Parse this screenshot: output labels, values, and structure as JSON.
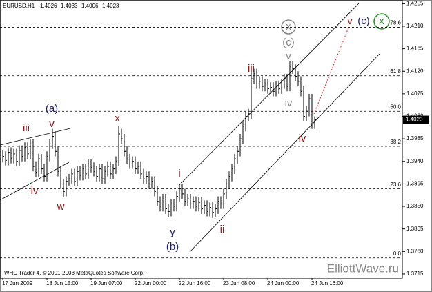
{
  "chart_data": {
    "type": "hlc",
    "symbol": "EURUSD,H1",
    "open": 1.4026,
    "high": 1.4033,
    "low": 1.4006,
    "close": 1.4023,
    "last_price": 1.4023,
    "copyright": "WHC Trader 4, © 2001-2008 MetaQuotes Software Corp.",
    "watermark": "ElliottWave.ru",
    "color": "#000000",
    "ylim": [
      1.3708,
      1.4261
    ],
    "yticks": [
      1.4255,
      {
        "value": 1.421,
        "label": "1.4210"
      },
      1.4165,
      {
        "value": 1.412,
        "label": "1.4120"
      },
      1.4075,
      {
        "value": 1.403,
        "label": "1.4030"
      },
      1.3985,
      {
        "value": 1.394,
        "label": "1.3940"
      },
      1.3895,
      {
        "value": 1.385,
        "label": "1.3850"
      },
      1.3805,
      {
        "value": 1.376,
        "label": "1.3760"
      },
      1.3715
    ],
    "fib_levels": [
      {
        "text": "78.6",
        "price": 1.4208
      },
      {
        "text": "61.8",
        "price": 1.4111
      },
      {
        "text": "50.0",
        "price": 1.404
      },
      {
        "text": "38.2",
        "price": 1.397
      },
      {
        "text": "23.6",
        "price": 1.3885
      },
      {
        "text": "0.0",
        "price": 1.3747
      }
    ],
    "categories": [
      "17 Jun 2009",
      null,
      null,
      null,
      null,
      null,
      null,
      null,
      null,
      null,
      null,
      null,
      null,
      null,
      null,
      null,
      "18 Jun 15:00",
      null,
      null,
      null,
      null,
      null,
      null,
      null,
      null,
      null,
      null,
      null,
      null,
      null,
      null,
      null,
      "19 Jun 07:00",
      null,
      null,
      null,
      null,
      null,
      null,
      null,
      null,
      null,
      null,
      null,
      null,
      null,
      null,
      null,
      "22 Jun 00:00",
      null,
      null,
      null,
      null,
      null,
      null,
      null,
      null,
      null,
      null,
      null,
      null,
      null,
      null,
      null,
      "22 Jun 16:00",
      null,
      null,
      null,
      null,
      null,
      null,
      null,
      null,
      null,
      null,
      null,
      null,
      null,
      null,
      null,
      "23 Jun 08:00",
      null,
      null,
      null,
      null,
      null,
      null,
      null,
      null,
      null,
      null,
      null,
      null,
      null,
      null,
      null,
      "24 Jun 00:00",
      null,
      null,
      null,
      null,
      null,
      null,
      null,
      null,
      null,
      null,
      null,
      null,
      null,
      null,
      null,
      "24 Jun 16:00",
      null
    ],
    "series": {
      "high": [
        1.3962,
        1.396,
        1.3968,
        1.3968,
        1.3965,
        1.3965,
        1.3972,
        1.3972,
        1.3978,
        1.3978,
        1.3985,
        1.3985,
        1.394,
        1.3955,
        1.3955,
        1.3935,
        1.396,
        1.3985,
        1.4005,
        1.4,
        1.397,
        1.393,
        1.3905,
        1.391,
        1.3915,
        1.3925,
        1.3925,
        1.393,
        1.393,
        1.3935,
        1.3935,
        1.3945,
        1.3945,
        1.3938,
        1.393,
        1.3935,
        1.3935,
        1.393,
        1.394,
        1.394,
        1.3935,
        1.395,
        1.401,
        1.4005,
        1.3995,
        1.397,
        1.3955,
        1.395,
        1.395,
        1.394,
        1.394,
        1.3925,
        1.392,
        1.392,
        1.391,
        1.391,
        1.389,
        1.387,
        1.3875,
        1.3875,
        1.3855,
        1.3865,
        1.3865,
        1.388,
        1.3895,
        1.3895,
        1.3885,
        1.3875,
        1.3875,
        1.387,
        1.387,
        1.3868,
        1.3868,
        1.3862,
        1.3862,
        1.3858,
        1.3858,
        1.3855,
        1.387,
        1.387,
        1.3885,
        1.3905,
        1.392,
        1.3935,
        1.3955,
        1.397,
        1.3995,
        1.402,
        1.404,
        1.4045,
        1.412,
        1.4125,
        1.4125,
        1.411,
        1.411,
        1.4105,
        1.4105,
        1.4098,
        1.4098,
        1.41,
        1.41,
        1.4105,
        1.4115,
        1.4115,
        1.414,
        1.414,
        1.4135,
        1.412,
        1.411,
        1.409,
        1.405,
        1.4075,
        1.4075,
        1.403
      ],
      "low": [
        1.3938,
        1.3932,
        1.3932,
        1.3936,
        1.3936,
        1.393,
        1.393,
        1.394,
        1.394,
        1.3945,
        1.3945,
        1.392,
        1.3908,
        1.3908,
        1.3915,
        1.39,
        1.39,
        1.394,
        1.3965,
        1.395,
        1.391,
        1.3885,
        1.3868,
        1.387,
        1.389,
        1.3895,
        1.389,
        1.389,
        1.3902,
        1.3902,
        1.3905,
        1.3905,
        1.3918,
        1.391,
        1.39,
        1.39,
        1.3895,
        1.3895,
        1.391,
        1.3905,
        1.3905,
        1.3915,
        1.393,
        1.3975,
        1.395,
        1.3935,
        1.3925,
        1.3925,
        1.3915,
        1.3915,
        1.3905,
        1.3895,
        1.3895,
        1.3885,
        1.3885,
        1.387,
        1.385,
        1.384,
        1.384,
        1.3835,
        1.3828,
        1.383,
        1.384,
        1.384,
        1.386,
        1.3865,
        1.385,
        1.385,
        1.3845,
        1.3845,
        1.384,
        1.384,
        1.3835,
        1.3835,
        1.383,
        1.383,
        1.3827,
        1.3828,
        1.3835,
        1.3845,
        1.3845,
        1.3865,
        1.3885,
        1.39,
        1.3915,
        1.3935,
        1.395,
        1.3975,
        1.4,
        1.402,
        1.4025,
        1.4095,
        1.4085,
        1.4085,
        1.408,
        1.408,
        1.4075,
        1.4075,
        1.407,
        1.407,
        1.4075,
        1.4075,
        1.4085,
        1.408,
        1.408,
        1.4115,
        1.41,
        1.409,
        1.407,
        1.402,
        1.402,
        1.403,
        1.4005,
        1.4005
      ],
      "close": [
        1.395,
        1.3942,
        1.3958,
        1.3946,
        1.3955,
        1.394,
        1.3962,
        1.395,
        1.3968,
        1.3955,
        1.3975,
        1.393,
        1.3918,
        1.3945,
        1.3925,
        1.391,
        1.395,
        1.3975,
        1.399,
        1.396,
        1.392,
        1.3895,
        1.388,
        1.39,
        1.3905,
        1.3915,
        1.39,
        1.392,
        1.3912,
        1.3925,
        1.3915,
        1.3935,
        1.3928,
        1.392,
        1.391,
        1.3925,
        1.3905,
        1.392,
        1.393,
        1.3915,
        1.3925,
        1.394,
        1.3995,
        1.3985,
        1.396,
        1.3945,
        1.3935,
        1.394,
        1.3925,
        1.393,
        1.3915,
        1.3905,
        1.391,
        1.3895,
        1.39,
        1.388,
        1.386,
        1.385,
        1.3865,
        1.3845,
        1.384,
        1.3855,
        1.385,
        1.387,
        1.3885,
        1.3875,
        1.386,
        1.3865,
        1.3855,
        1.386,
        1.385,
        1.3858,
        1.3845,
        1.3852,
        1.384,
        1.3848,
        1.3838,
        1.3845,
        1.386,
        1.3855,
        1.3875,
        1.3895,
        1.391,
        1.3925,
        1.3945,
        1.396,
        1.3985,
        1.401,
        1.403,
        1.4035,
        1.4105,
        1.4115,
        1.4095,
        1.41,
        1.409,
        1.4095,
        1.4085,
        1.4088,
        1.408,
        1.409,
        1.4085,
        1.4095,
        1.4105,
        1.409,
        1.413,
        1.4125,
        1.411,
        1.41,
        1.408,
        1.403,
        1.404,
        1.4065,
        1.4015,
        1.4023
      ]
    },
    "annotations": [
      {
        "text": "(a)",
        "color": "#1a1a6e"
      },
      {
        "text": "iii",
        "color": "#8b1a1a"
      },
      {
        "text": "v",
        "color": "#8b1a1a"
      },
      {
        "text": "iv",
        "color": "#8b1a1a"
      },
      {
        "text": "w",
        "color": "#8b1a1a"
      },
      {
        "text": "x",
        "color": "#8b1a1a"
      },
      {
        "text": "i",
        "color": "#8b1a1a"
      },
      {
        "text": "y",
        "color": "#1a1a6e"
      },
      {
        "text": "(b)",
        "color": "#1a1a6e"
      },
      {
        "text": "ii",
        "color": "#8b1a1a"
      },
      {
        "text": "iii",
        "color": "#8b1a1a"
      },
      {
        "text": "(c)",
        "color": "#888888"
      },
      {
        "text": "v",
        "color": "#888888"
      },
      {
        "text": "iv",
        "color": "#888888"
      },
      {
        "text": "iv",
        "color": "#8b1a1a"
      },
      {
        "text": "x",
        "color": "#888888"
      },
      {
        "text": "v",
        "color": "#8b1a1a"
      },
      {
        "text": "(c)",
        "color": "#1a1a6e"
      },
      {
        "text": "x",
        "color": "#2e8b2e"
      }
    ]
  }
}
